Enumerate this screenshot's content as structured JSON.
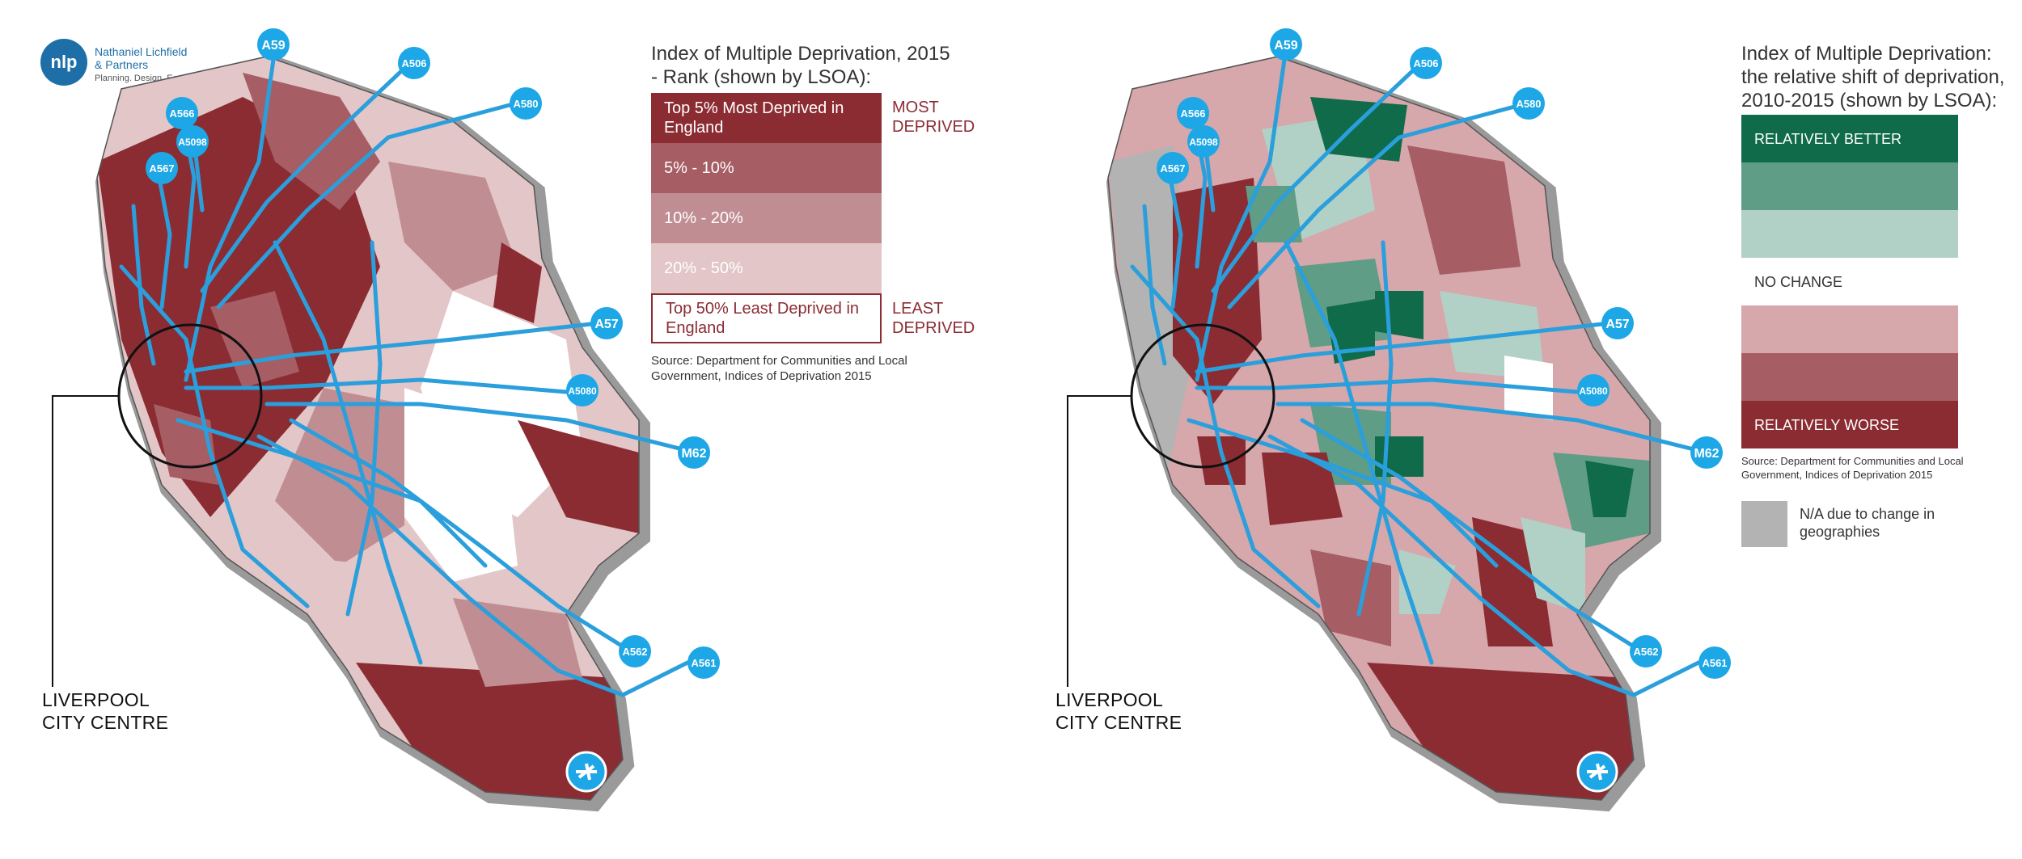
{
  "logo": {
    "mark": "nlp",
    "name_line1": "Nathaniel Lichfield",
    "name_line2": "& Partners",
    "tagline": "Planning. Design. Economics."
  },
  "left_map": {
    "legend_title_line1": "Index of Multiple Deprivation, 2015",
    "legend_title_line2": "- Rank (shown by LSOA):",
    "legend_items": [
      {
        "label_line1": "Top 5% Most Deprived in",
        "label_line2": "England",
        "color": "#8b2c33"
      },
      {
        "label_line1": "5% - 10%",
        "label_line2": "",
        "color": "#a65d64"
      },
      {
        "label_line1": "10% - 20%",
        "label_line2": "",
        "color": "#c08e92"
      },
      {
        "label_line1": "20% - 50%",
        "label_line2": "",
        "color": "#e2c6c8"
      },
      {
        "label_line1": "Top 50% Least Deprived in",
        "label_line2": "England",
        "color": "#ffffff"
      }
    ],
    "most_deprived_line1": "MOST",
    "most_deprived_line2": "DEPRIVED",
    "least_deprived_line1": "LEAST",
    "least_deprived_line2": "DEPRIVED",
    "source_line1": "Source: Department for Communities and Local",
    "source_line2": "Government, Indices of Deprivation 2015",
    "city_label_line1": "LIVERPOOL",
    "city_label_line2": "CITY CENTRE"
  },
  "right_map": {
    "legend_title_line1": "Index of Multiple Deprivation:",
    "legend_title_line2": "the relative shift of deprivation,",
    "legend_title_line3": "2010-2015 (shown by LSOA):",
    "legend_items": [
      {
        "label": "RELATIVELY BETTER",
        "color": "#0f6b4a"
      },
      {
        "label": "",
        "color": "#5f9d86"
      },
      {
        "label": "",
        "color": "#b2d1c6"
      },
      {
        "label": "NO CHANGE",
        "color": "#ffffff"
      },
      {
        "label": "",
        "color": "#d6a7ab"
      },
      {
        "label": "",
        "color": "#a65d64"
      },
      {
        "label": "RELATIVELY WORSE",
        "color": "#8b2c33"
      }
    ],
    "source_line1": "Source: Department for Communities and Local",
    "source_line2": "Government, Indices of Deprivation 2015",
    "na_label_line1": "N/A due to change in",
    "na_label_line2": "geographies",
    "na_color": "#b3b3b3",
    "city_label_line1": "LIVERPOOL",
    "city_label_line2": "CITY CENTRE"
  },
  "road_badges": [
    "A59",
    "A506",
    "A580",
    "A566",
    "A5098",
    "A567",
    "A57",
    "A5080",
    "M62",
    "A562",
    "A561"
  ],
  "colors": {
    "road": "#2a9fdc",
    "badge": "#1da7e6",
    "outline_shadow": "#9a9a9a"
  },
  "icons": {
    "airport": "airplane-icon"
  }
}
